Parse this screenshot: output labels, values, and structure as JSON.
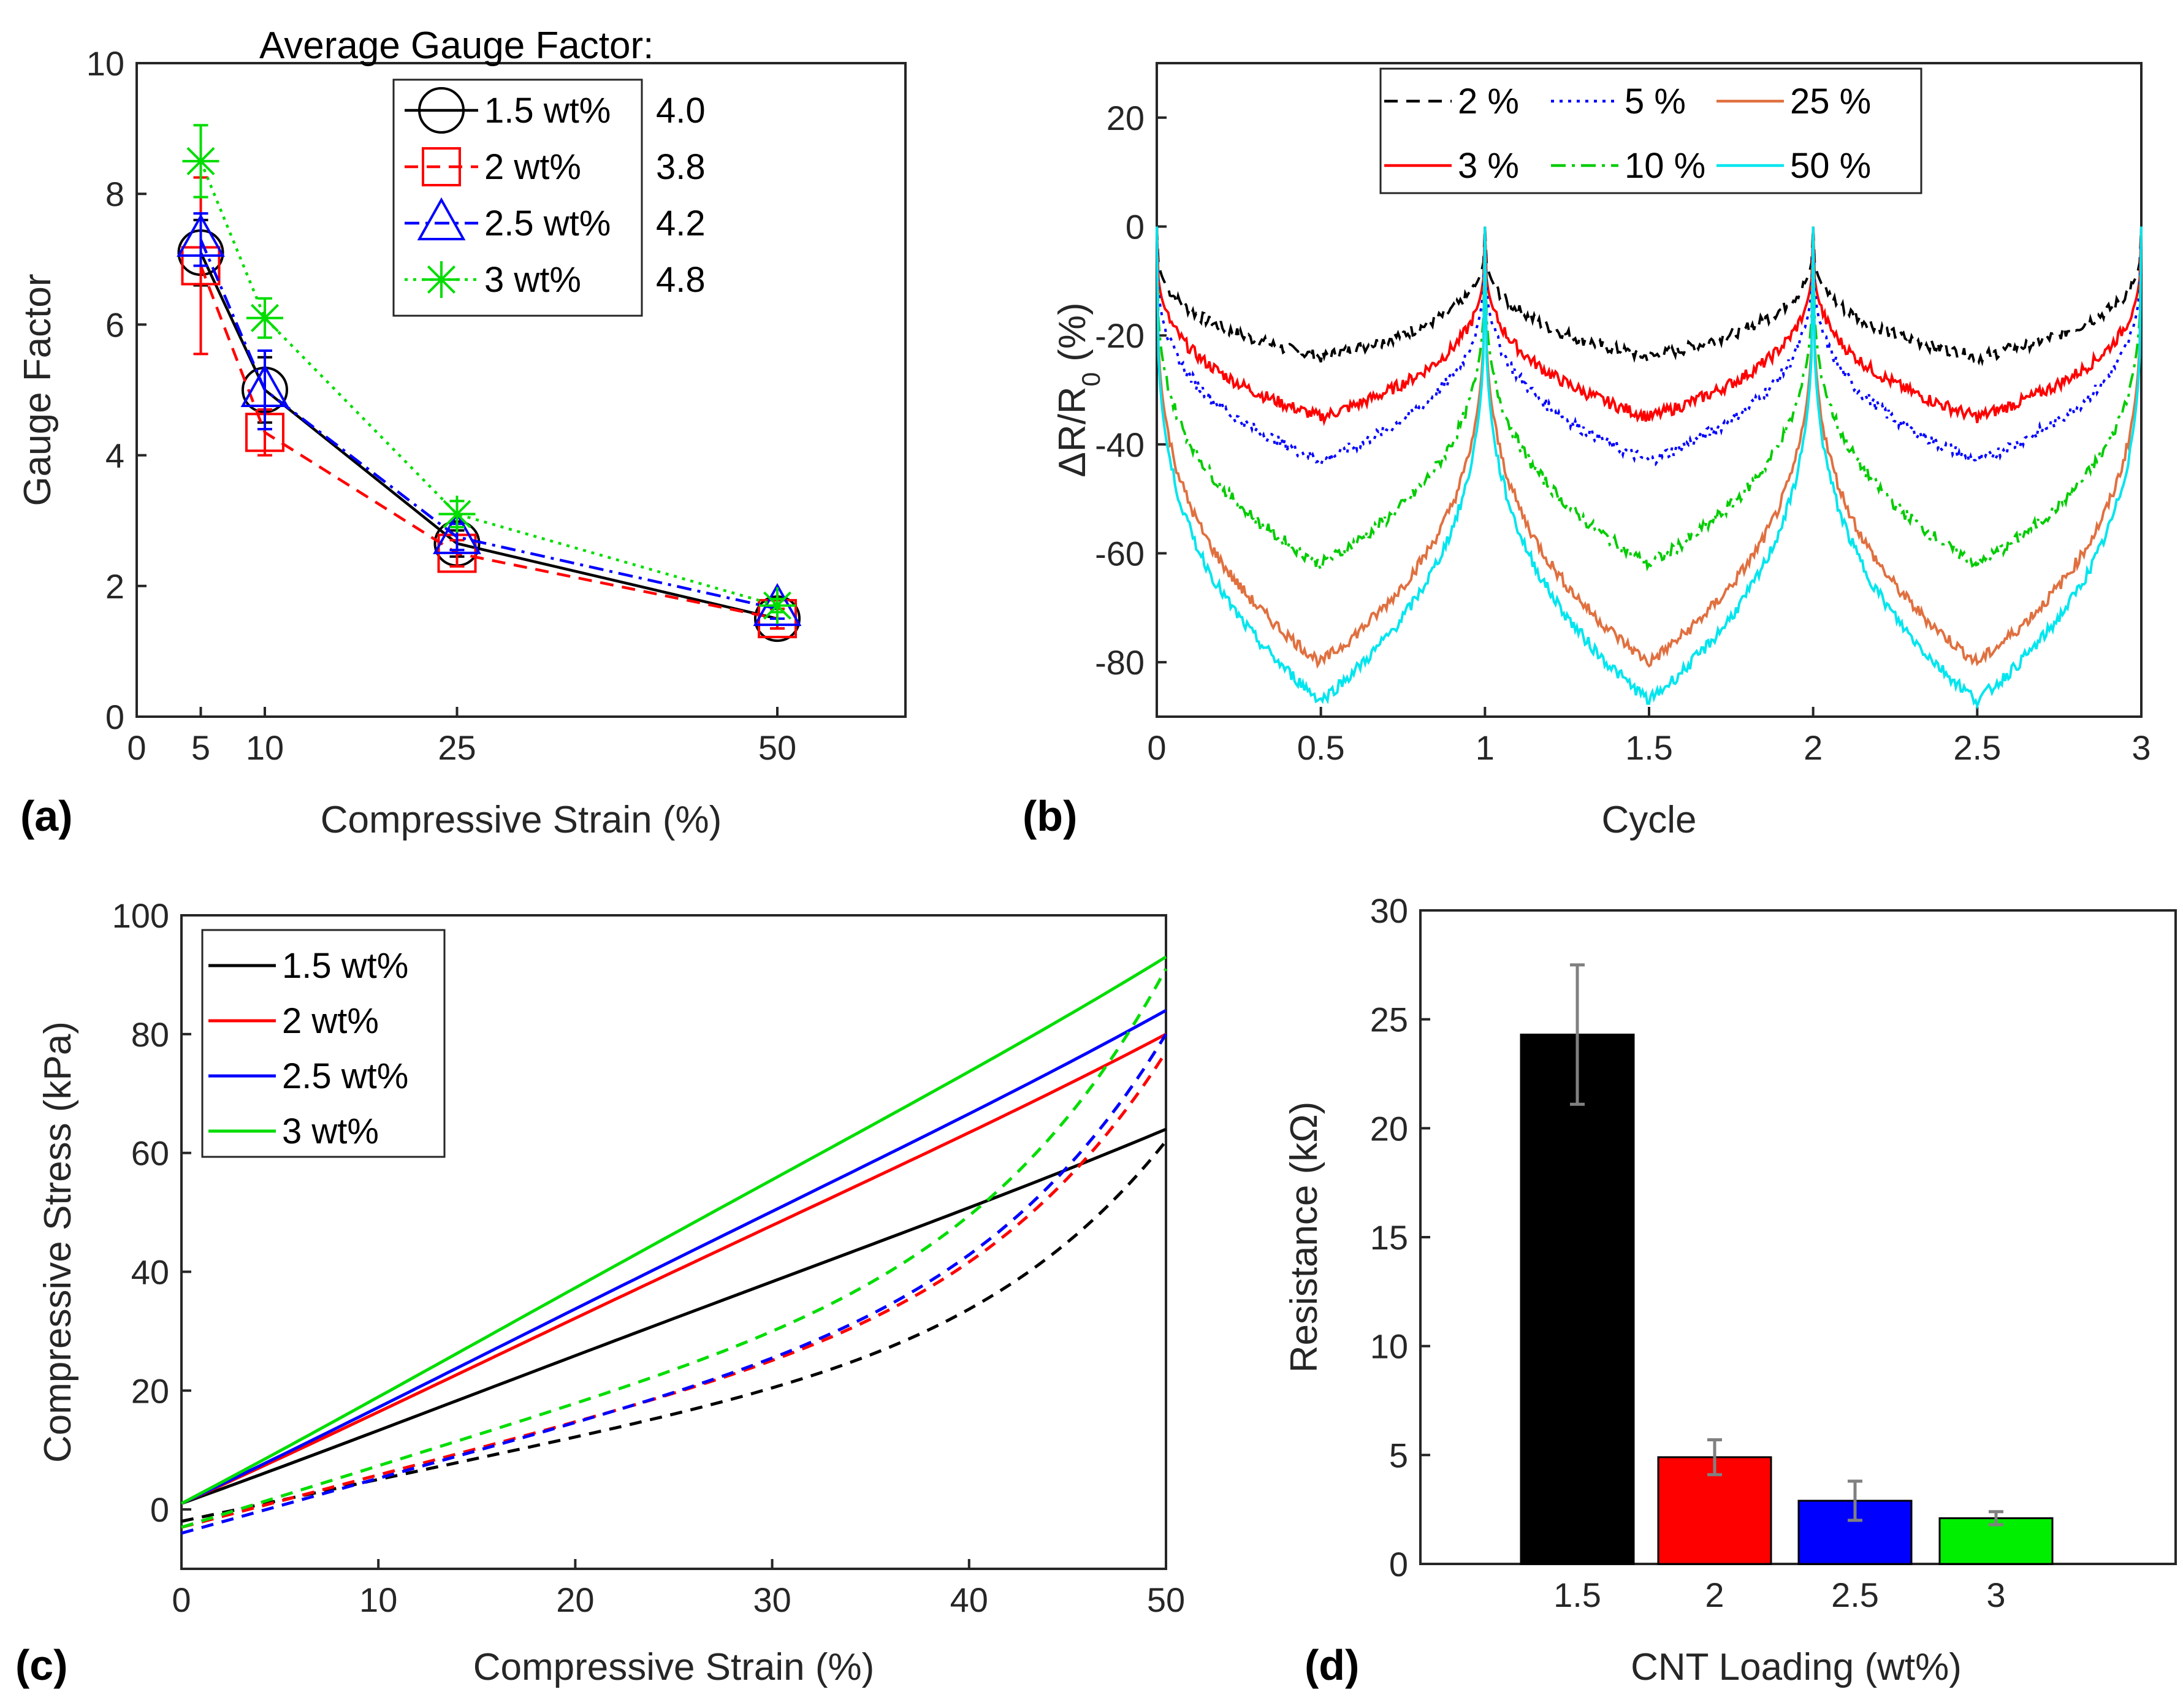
{
  "panels": {
    "a": {
      "label": "(a)"
    },
    "b": {
      "label": "(b)"
    },
    "c": {
      "label": "(c)"
    },
    "d": {
      "label": "(d)"
    }
  },
  "chart_data": [
    {
      "id": "a",
      "type": "line",
      "title": "Average Gauge Factor:",
      "xlabel": "Compressive Strain (%)",
      "ylabel": "Gauge Factor",
      "xlim": [
        0,
        60
      ],
      "ylim": [
        0,
        10
      ],
      "xticks": [
        0,
        5,
        10,
        25,
        50
      ],
      "yticks": [
        0,
        2,
        4,
        6,
        8,
        10
      ],
      "x": [
        5,
        10,
        25,
        50
      ],
      "series": [
        {
          "name": "1.5 wt%",
          "gf": "4.0",
          "color": "#000000",
          "marker": "circle",
          "dash": "solid",
          "values": [
            7.1,
            5.0,
            2.65,
            1.5
          ],
          "err": [
            0.5,
            0.5,
            0.2,
            0.15
          ]
        },
        {
          "name": "2 wt%",
          "gf": "3.8",
          "color": "#ff0000",
          "marker": "square",
          "dash": "dashed",
          "values": [
            6.9,
            4.35,
            2.5,
            1.5
          ],
          "err": [
            1.35,
            0.35,
            0.2,
            0.15
          ]
        },
        {
          "name": "2.5 wt%",
          "gf": "4.2",
          "color": "#0000ff",
          "marker": "triangle",
          "dash": "dashdot",
          "values": [
            7.3,
            5.0,
            2.75,
            1.65
          ],
          "err": [
            0.4,
            0.6,
            0.2,
            0.15
          ]
        },
        {
          "name": "3 wt%",
          "gf": "4.8",
          "color": "#00dd00",
          "marker": "star",
          "dash": "dotted",
          "values": [
            8.5,
            6.1,
            3.1,
            1.7
          ],
          "err": [
            0.55,
            0.3,
            0.2,
            0.1
          ]
        }
      ]
    },
    {
      "id": "b",
      "type": "line",
      "xlabel": "Cycle",
      "ylabel": "ΔR/R",
      "ylabel_sub": "0",
      "ylabel_suffix": " (%)",
      "xlim": [
        0,
        3
      ],
      "ylim": [
        -90,
        30
      ],
      "xticks": [
        "0",
        "0.5",
        "1",
        "1.5",
        "2",
        "2.5",
        "3"
      ],
      "yticks": [
        20,
        0,
        -20,
        -40,
        -60,
        -80
      ],
      "series": [
        {
          "name": "2 %",
          "color": "#000000",
          "dash": "dashed",
          "min": -24
        },
        {
          "name": "3 %",
          "color": "#ff0000",
          "dash": "solid",
          "min": -35
        },
        {
          "name": "5 %",
          "color": "#0000ff",
          "dash": "dotted",
          "min": -43
        },
        {
          "name": "10 %",
          "color": "#00cc00",
          "dash": "dashdot",
          "min": -62
        },
        {
          "name": "25 %",
          "color": "#e07040",
          "dash": "solid",
          "min": -80
        },
        {
          "name": "50 %",
          "color": "#00e5ee",
          "dash": "solid",
          "min": -87
        }
      ]
    },
    {
      "id": "c",
      "type": "line",
      "xlabel": "Compressive Strain (%)",
      "ylabel": "Compressive Stress (kPa)",
      "xlim": [
        0,
        50
      ],
      "ylim": [
        -10,
        100
      ],
      "xticks": [
        0,
        10,
        20,
        30,
        40,
        50
      ],
      "yticks": [
        0,
        20,
        40,
        60,
        80,
        100
      ],
      "series": [
        {
          "name": "1.5 wt%",
          "color": "#000000",
          "load_end": 64,
          "unload_start": -2,
          "unload_end": 62
        },
        {
          "name": "2 wt%",
          "color": "#ff0000",
          "load_end": 80,
          "unload_start": -3,
          "unload_end": 77
        },
        {
          "name": "2.5 wt%",
          "color": "#0000ff",
          "load_end": 84,
          "unload_start": -4,
          "unload_end": 80
        },
        {
          "name": "3 wt%",
          "color": "#00dd00",
          "load_end": 93,
          "unload_start": -3,
          "unload_end": 91
        }
      ]
    },
    {
      "id": "d",
      "type": "bar",
      "xlabel": "CNT Loading (wt%)",
      "ylabel": "Resistance (kΩ)",
      "ylim": [
        0,
        30
      ],
      "yticks": [
        0,
        5,
        10,
        15,
        20,
        25,
        30
      ],
      "categories": [
        "1.5",
        "2",
        "2.5",
        "3"
      ],
      "values": [
        24.3,
        4.9,
        2.9,
        2.1
      ],
      "err": [
        3.2,
        0.8,
        0.9,
        0.3
      ],
      "colors": [
        "#000000",
        "#ff0000",
        "#0000ff",
        "#00ee00"
      ]
    }
  ]
}
